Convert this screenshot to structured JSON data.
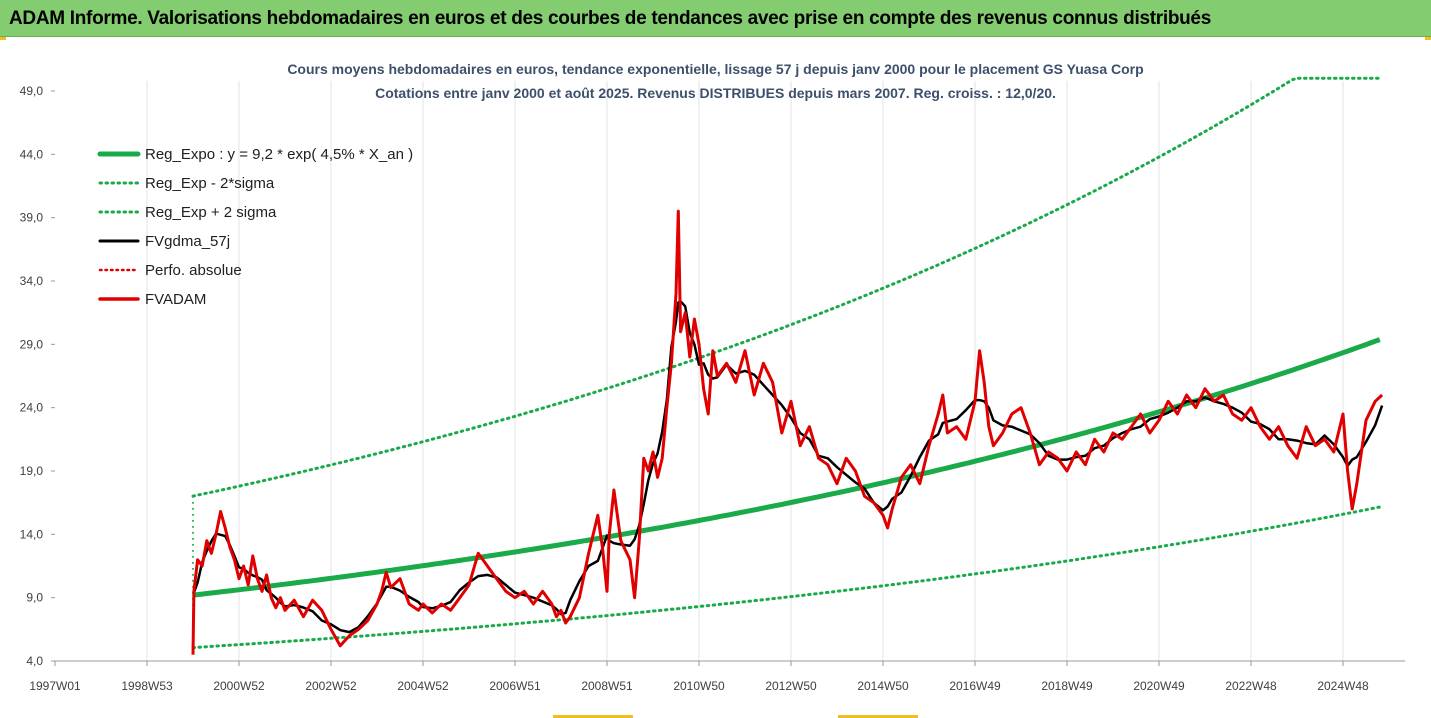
{
  "banner": {
    "text": "ADAM Informe. Valorisations hebdomadaires en euros et des courbes de tendances avec prise en compte des revenus connus distribués"
  },
  "colors": {
    "banner_bg": "#84cc70",
    "reg_expo": "#1aaa4a",
    "sigma_bands": "#1aaa4a",
    "fvgdma": "#000000",
    "perfo": "#e00000",
    "fvadam": "#e00000"
  },
  "chart_data": {
    "type": "line",
    "title_line1": "Cours moyens hebdomadaires en euros, tendance exponentielle, lissage 57 j depuis janv 2000 pour le placement GS Yuasa Corp",
    "title_line2": "Cotations entre janv 2000 et août 2025. Revenus DISTRIBUES depuis mars 2007. Reg. croiss. : 12,0/20.",
    "ylim": [
      4.0,
      50.0
    ],
    "y_ticks": [
      "49,0",
      "44,0",
      "39,0",
      "34,0",
      "29,0",
      "24,0",
      "19,0",
      "14,0",
      "9,0",
      "4,0"
    ],
    "x_range": [
      1997.0,
      2025.85
    ],
    "x_ticks": [
      {
        "label": "1997W01",
        "x": 1997.0
      },
      {
        "label": "1998W53",
        "x": 1999.0
      },
      {
        "label": "2000W52",
        "x": 2001.0
      },
      {
        "label": "2002W52",
        "x": 2003.0
      },
      {
        "label": "2004W52",
        "x": 2005.0
      },
      {
        "label": "2006W51",
        "x": 2007.0
      },
      {
        "label": "2008W51",
        "x": 2009.0
      },
      {
        "label": "2010W50",
        "x": 2011.0
      },
      {
        "label": "2012W50",
        "x": 2013.0
      },
      {
        "label": "2014W50",
        "x": 2015.0
      },
      {
        "label": "2016W49",
        "x": 2017.0
      },
      {
        "label": "2018W49",
        "x": 2019.0
      },
      {
        "label": "2020W49",
        "x": 2021.0
      },
      {
        "label": "2022W48",
        "x": 2023.0
      },
      {
        "label": "2024W48",
        "x": 2025.0
      }
    ],
    "legend": [
      {
        "name": "Reg_Expo : y = 9,2 * exp( 4,5% *  X_an )",
        "key": "reg",
        "style": "solid-thick"
      },
      {
        "name": "Reg_Exp - 2*sigma",
        "key": "lower",
        "style": "dotted-green"
      },
      {
        "name": "Reg_Exp + 2 sigma",
        "key": "upper",
        "style": "dotted-green"
      },
      {
        "name": "FVgdma_57j",
        "key": "gdma",
        "style": "solid-black"
      },
      {
        "name": "Perfo. absolue",
        "key": "perfo",
        "style": "dotted-red"
      },
      {
        "name": "FVADAM",
        "key": "fvadam",
        "style": "solid-red"
      }
    ],
    "legend_position": "top-left",
    "grid": "vertical",
    "trend": {
      "start_x": 2000.0,
      "end_x": 2025.85,
      "base": 9.2,
      "rate": 0.045,
      "lower_factor": 0.55,
      "upper_factor": 1.85,
      "cap": 50.0
    },
    "series": [
      {
        "name": "FVADAM",
        "points": [
          [
            2000.0,
            4.5
          ],
          [
            2000.02,
            9.5
          ],
          [
            2000.1,
            12.0
          ],
          [
            2000.2,
            11.5
          ],
          [
            2000.3,
            13.5
          ],
          [
            2000.4,
            12.5
          ],
          [
            2000.5,
            14.0
          ],
          [
            2000.6,
            15.8
          ],
          [
            2000.7,
            14.5
          ],
          [
            2000.8,
            13.0
          ],
          [
            2000.9,
            12.0
          ],
          [
            2001.0,
            10.5
          ],
          [
            2001.1,
            11.5
          ],
          [
            2001.2,
            10.0
          ],
          [
            2001.3,
            12.3
          ],
          [
            2001.4,
            10.5
          ],
          [
            2001.5,
            9.5
          ],
          [
            2001.6,
            10.8
          ],
          [
            2001.7,
            9.0
          ],
          [
            2001.8,
            8.2
          ],
          [
            2001.9,
            9.0
          ],
          [
            2002.0,
            8.0
          ],
          [
            2002.2,
            8.8
          ],
          [
            2002.4,
            7.5
          ],
          [
            2002.6,
            8.8
          ],
          [
            2002.8,
            8.0
          ],
          [
            2003.0,
            6.5
          ],
          [
            2003.2,
            5.2
          ],
          [
            2003.4,
            6.0
          ],
          [
            2003.6,
            6.5
          ],
          [
            2003.8,
            7.2
          ],
          [
            2004.0,
            8.5
          ],
          [
            2004.1,
            9.5
          ],
          [
            2004.2,
            11.0
          ],
          [
            2004.3,
            9.8
          ],
          [
            2004.5,
            10.5
          ],
          [
            2004.7,
            8.5
          ],
          [
            2004.9,
            8.0
          ],
          [
            2005.0,
            8.5
          ],
          [
            2005.2,
            7.8
          ],
          [
            2005.4,
            8.5
          ],
          [
            2005.6,
            8.0
          ],
          [
            2005.8,
            9.0
          ],
          [
            2006.0,
            10.0
          ],
          [
            2006.2,
            12.5
          ],
          [
            2006.4,
            11.5
          ],
          [
            2006.6,
            10.5
          ],
          [
            2006.8,
            9.5
          ],
          [
            2007.0,
            9.0
          ],
          [
            2007.2,
            9.5
          ],
          [
            2007.4,
            8.5
          ],
          [
            2007.6,
            9.5
          ],
          [
            2007.8,
            8.5
          ],
          [
            2007.9,
            7.5
          ],
          [
            2008.0,
            8.0
          ],
          [
            2008.1,
            7.0
          ],
          [
            2008.2,
            7.5
          ],
          [
            2008.4,
            9.0
          ],
          [
            2008.6,
            12.5
          ],
          [
            2008.8,
            15.5
          ],
          [
            2008.9,
            13.0
          ],
          [
            2009.0,
            9.5
          ],
          [
            2009.05,
            14.0
          ],
          [
            2009.15,
            17.5
          ],
          [
            2009.3,
            13.5
          ],
          [
            2009.5,
            12.0
          ],
          [
            2009.6,
            9.0
          ],
          [
            2009.7,
            13.5
          ],
          [
            2009.8,
            20.0
          ],
          [
            2009.9,
            19.0
          ],
          [
            2010.0,
            20.5
          ],
          [
            2010.1,
            18.5
          ],
          [
            2010.2,
            20.0
          ],
          [
            2010.3,
            24.0
          ],
          [
            2010.4,
            27.5
          ],
          [
            2010.5,
            33.0
          ],
          [
            2010.55,
            39.5
          ],
          [
            2010.6,
            30.0
          ],
          [
            2010.7,
            31.5
          ],
          [
            2010.8,
            28.0
          ],
          [
            2010.9,
            31.0
          ],
          [
            2011.0,
            29.0
          ],
          [
            2011.1,
            25.5
          ],
          [
            2011.2,
            23.5
          ],
          [
            2011.3,
            28.5
          ],
          [
            2011.4,
            26.5
          ],
          [
            2011.6,
            27.5
          ],
          [
            2011.8,
            26.0
          ],
          [
            2012.0,
            28.5
          ],
          [
            2012.2,
            25.0
          ],
          [
            2012.4,
            27.5
          ],
          [
            2012.6,
            26.0
          ],
          [
            2012.8,
            22.0
          ],
          [
            2013.0,
            24.5
          ],
          [
            2013.2,
            21.0
          ],
          [
            2013.4,
            22.5
          ],
          [
            2013.6,
            20.0
          ],
          [
            2013.8,
            19.5
          ],
          [
            2014.0,
            18.0
          ],
          [
            2014.2,
            20.0
          ],
          [
            2014.4,
            19.0
          ],
          [
            2014.6,
            17.0
          ],
          [
            2014.8,
            16.5
          ],
          [
            2015.0,
            15.5
          ],
          [
            2015.1,
            14.5
          ],
          [
            2015.2,
            16.0
          ],
          [
            2015.4,
            18.5
          ],
          [
            2015.6,
            19.5
          ],
          [
            2015.8,
            18.0
          ],
          [
            2016.0,
            21.0
          ],
          [
            2016.2,
            23.5
          ],
          [
            2016.3,
            25.0
          ],
          [
            2016.4,
            22.0
          ],
          [
            2016.6,
            22.5
          ],
          [
            2016.8,
            21.5
          ],
          [
            2017.0,
            24.5
          ],
          [
            2017.1,
            28.5
          ],
          [
            2017.2,
            26.0
          ],
          [
            2017.3,
            22.5
          ],
          [
            2017.4,
            21.0
          ],
          [
            2017.6,
            22.0
          ],
          [
            2017.8,
            23.5
          ],
          [
            2018.0,
            24.0
          ],
          [
            2018.2,
            22.0
          ],
          [
            2018.4,
            19.5
          ],
          [
            2018.6,
            20.5
          ],
          [
            2018.8,
            20.0
          ],
          [
            2019.0,
            19.0
          ],
          [
            2019.2,
            20.5
          ],
          [
            2019.4,
            19.5
          ],
          [
            2019.6,
            21.5
          ],
          [
            2019.8,
            20.5
          ],
          [
            2020.0,
            22.0
          ],
          [
            2020.2,
            21.5
          ],
          [
            2020.4,
            22.5
          ],
          [
            2020.6,
            23.5
          ],
          [
            2020.8,
            22.0
          ],
          [
            2021.0,
            23.0
          ],
          [
            2021.2,
            24.5
          ],
          [
            2021.4,
            23.5
          ],
          [
            2021.6,
            25.0
          ],
          [
            2021.8,
            24.0
          ],
          [
            2022.0,
            25.5
          ],
          [
            2022.2,
            24.5
          ],
          [
            2022.4,
            25.0
          ],
          [
            2022.6,
            23.5
          ],
          [
            2022.8,
            23.0
          ],
          [
            2023.0,
            24.0
          ],
          [
            2023.2,
            22.5
          ],
          [
            2023.4,
            21.5
          ],
          [
            2023.6,
            22.5
          ],
          [
            2023.8,
            21.0
          ],
          [
            2024.0,
            20.0
          ],
          [
            2024.2,
            22.5
          ],
          [
            2024.4,
            21.0
          ],
          [
            2024.6,
            21.5
          ],
          [
            2024.8,
            20.5
          ],
          [
            2025.0,
            23.5
          ],
          [
            2025.1,
            19.0
          ],
          [
            2025.2,
            16.0
          ],
          [
            2025.3,
            18.0
          ],
          [
            2025.5,
            23.0
          ],
          [
            2025.7,
            24.5
          ],
          [
            2025.85,
            25.0
          ]
        ]
      }
    ]
  }
}
